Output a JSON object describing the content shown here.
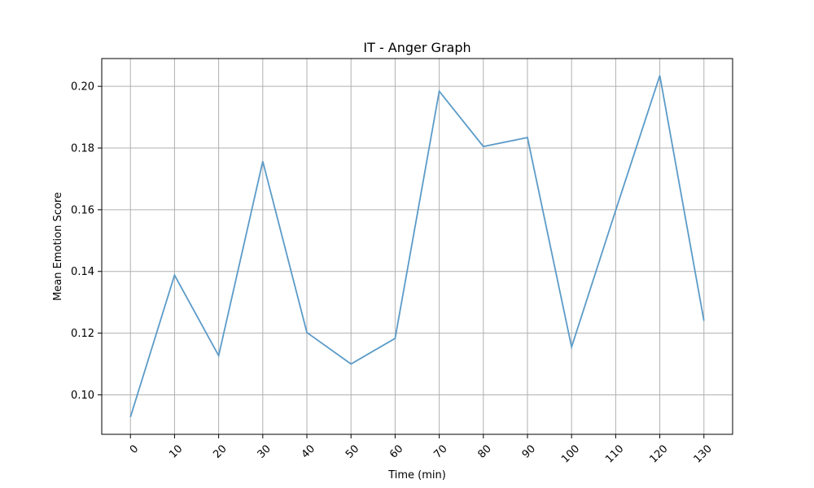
{
  "chart_data": {
    "type": "line",
    "title": "IT - Anger Graph",
    "xlabel": "Time (min)",
    "ylabel": "Mean Emotion Score",
    "x": [
      0,
      10,
      20,
      30,
      40,
      50,
      60,
      70,
      80,
      90,
      100,
      110,
      120,
      130
    ],
    "x_tick_labels": [
      "0",
      "10",
      "20",
      "30",
      "40",
      "50",
      "60",
      "70",
      "80",
      "90",
      "100",
      "110",
      "120",
      "130"
    ],
    "y_ticks": [
      0.1,
      0.12,
      0.14,
      0.16,
      0.18,
      0.2
    ],
    "y_tick_labels": [
      "0.10",
      "0.12",
      "0.14",
      "0.16",
      "0.18",
      "0.20"
    ],
    "xlim": [
      -6.5,
      136.5
    ],
    "ylim": [
      0.0872,
      0.209
    ],
    "grid": true,
    "x_tick_rotation_deg": 45,
    "series": [
      {
        "color": "#5b9bc8",
        "values": [
          0.0928,
          0.1388,
          0.1127,
          0.1757,
          0.1202,
          0.11,
          0.1183,
          0.1984,
          0.1805,
          0.1834,
          0.1155,
          0.1598,
          0.2035,
          0.124
        ]
      }
    ]
  }
}
